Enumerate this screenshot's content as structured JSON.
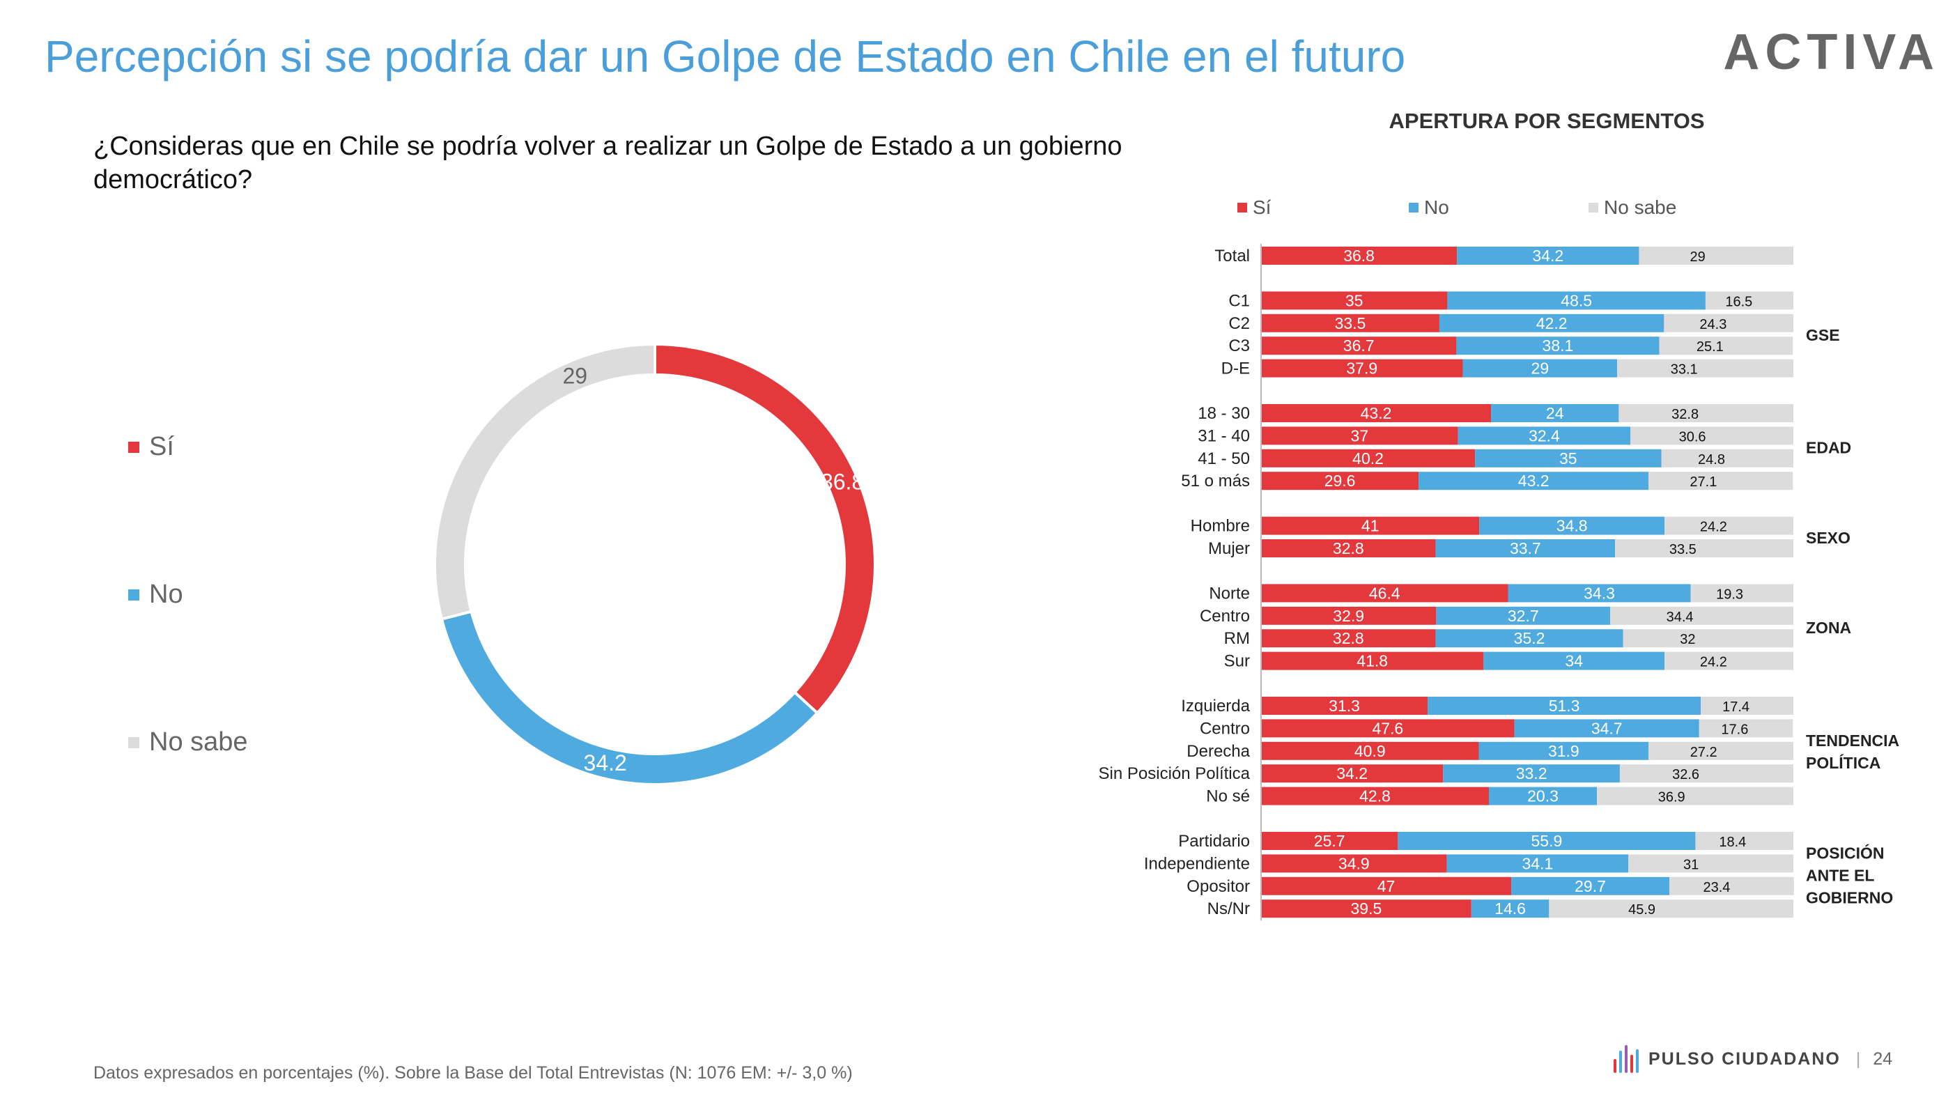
{
  "header": {
    "title": "Percepción si se podría dar un Golpe de Estado en Chile en el futuro",
    "brand": "ACTIVA"
  },
  "question": "¿Consideras que en Chile se podría volver a realizar un Golpe de Estado a un gobierno democrático?",
  "colors": {
    "si": "#e3393c",
    "no": "#4faadf",
    "nosabe": "#dcdcdc",
    "title": "#4a9fdb"
  },
  "donut_legend": [
    "Sí",
    "No",
    "No sabe"
  ],
  "segments_title": "APERTURA POR SEGMENTOS",
  "segments_legend": [
    "Sí",
    "No",
    "No sabe"
  ],
  "chart_data": [
    {
      "type": "pie",
      "donut": true,
      "categories": [
        "Sí",
        "No",
        "No sabe"
      ],
      "values": [
        36.8,
        34.2,
        29
      ]
    },
    {
      "type": "bar",
      "orientation": "horizontal",
      "stacked": true,
      "xlim": [
        0,
        100
      ],
      "series_names": [
        "Sí",
        "No",
        "No sabe"
      ],
      "groups": [
        {
          "name": "",
          "rows": [
            {
              "label": "Total",
              "values": [
                36.8,
                34.2,
                29
              ]
            }
          ]
        },
        {
          "name": "GSE",
          "rows": [
            {
              "label": "C1",
              "values": [
                35,
                48.5,
                16.5
              ]
            },
            {
              "label": "C2",
              "values": [
                33.5,
                42.2,
                24.3
              ]
            },
            {
              "label": "C3",
              "values": [
                36.7,
                38.1,
                25.1
              ]
            },
            {
              "label": "D-E",
              "values": [
                37.9,
                29,
                33.1
              ]
            }
          ]
        },
        {
          "name": "EDAD",
          "rows": [
            {
              "label": "18 - 30",
              "values": [
                43.2,
                24,
                32.8
              ]
            },
            {
              "label": "31 - 40",
              "values": [
                37,
                32.4,
                30.6
              ]
            },
            {
              "label": "41 - 50",
              "values": [
                40.2,
                35,
                24.8
              ]
            },
            {
              "label": "51 o más",
              "values": [
                29.6,
                43.2,
                27.1
              ]
            }
          ]
        },
        {
          "name": "SEXO",
          "rows": [
            {
              "label": "Hombre",
              "values": [
                41,
                34.8,
                24.2
              ]
            },
            {
              "label": "Mujer",
              "values": [
                32.8,
                33.7,
                33.5
              ]
            }
          ]
        },
        {
          "name": "ZONA",
          "rows": [
            {
              "label": "Norte",
              "values": [
                46.4,
                34.3,
                19.3
              ]
            },
            {
              "label": "Centro",
              "values": [
                32.9,
                32.7,
                34.4
              ]
            },
            {
              "label": "RM",
              "values": [
                32.8,
                35.2,
                32
              ]
            },
            {
              "label": "Sur",
              "values": [
                41.8,
                34,
                24.2
              ]
            }
          ]
        },
        {
          "name": "TENDENCIA\nPOLÍTICA",
          "rows": [
            {
              "label": "Izquierda",
              "values": [
                31.3,
                51.3,
                17.4
              ]
            },
            {
              "label": "Centro",
              "values": [
                47.6,
                34.7,
                17.6
              ]
            },
            {
              "label": "Derecha",
              "values": [
                40.9,
                31.9,
                27.2
              ]
            },
            {
              "label": "Sin Posición Política",
              "values": [
                34.2,
                33.2,
                32.6
              ]
            },
            {
              "label": "No sé",
              "values": [
                42.8,
                20.3,
                36.9
              ]
            }
          ]
        },
        {
          "name": "POSICIÓN\nANTE EL\nGOBIERNO",
          "rows": [
            {
              "label": "Partidario",
              "values": [
                25.7,
                55.9,
                18.4
              ]
            },
            {
              "label": "Independiente",
              "values": [
                34.9,
                34.1,
                31
              ]
            },
            {
              "label": "Opositor",
              "values": [
                47,
                29.7,
                23.4
              ]
            },
            {
              "label": "Ns/Nr",
              "values": [
                39.5,
                14.6,
                45.9
              ]
            }
          ]
        }
      ]
    }
  ],
  "footnote": "Datos expresados en porcentajes (%). Sobre la Base del Total Entrevistas (N: 1076 EM: +/- 3,0 %)",
  "footer": {
    "brand": "PULSO CIUDADANO",
    "page_number": "24"
  }
}
